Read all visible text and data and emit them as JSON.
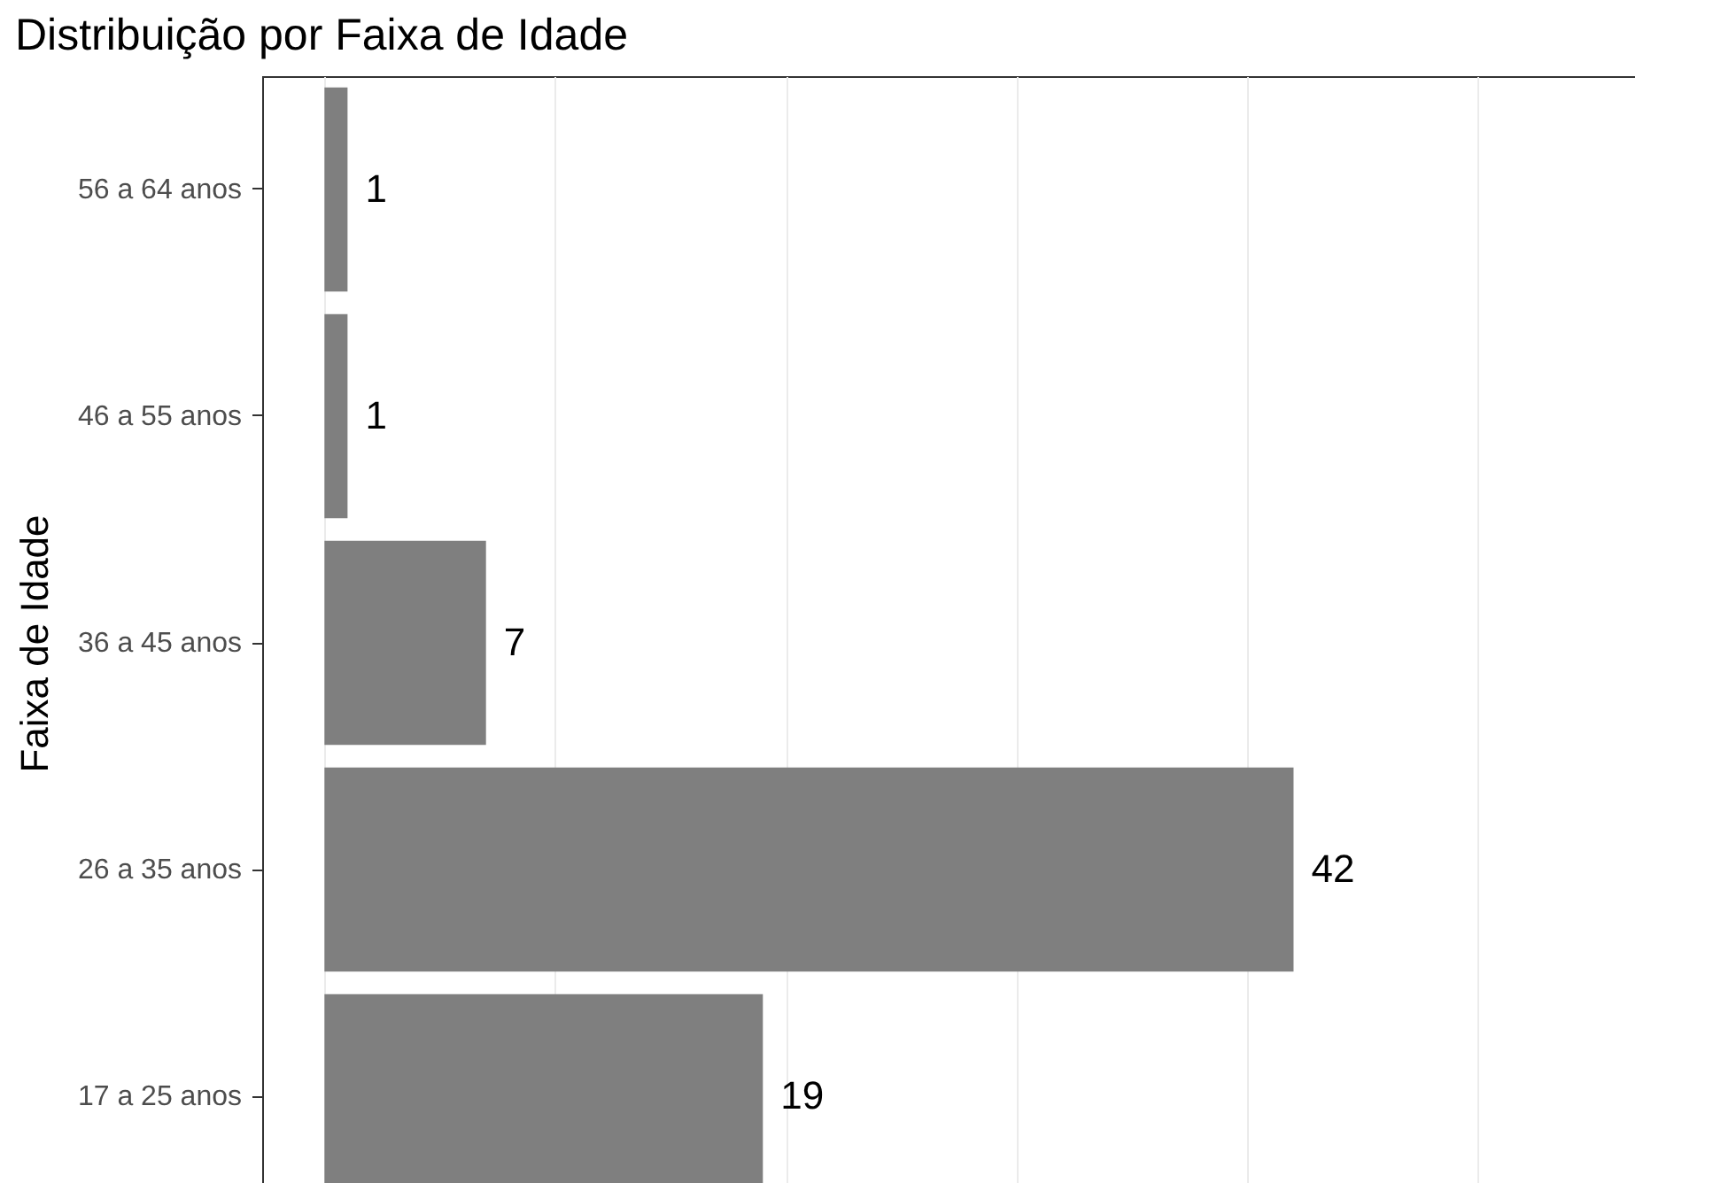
{
  "chart_data": {
    "type": "bar",
    "orientation": "horizontal",
    "title": "Distribuição por Faixa de Idade",
    "ylabel": "Faixa de Idade",
    "categories": [
      "56 a 64 anos",
      "46 a 55 anos",
      "36 a 45 anos",
      "26 a 35 anos",
      "17 a 25 anos"
    ],
    "values": [
      1,
      1,
      7,
      42,
      19
    ],
    "color": "#7f7f7f",
    "xlim": [
      -2.7,
      56.8
    ],
    "xticks": [
      0,
      10,
      20,
      30,
      40,
      50
    ],
    "tick_labels": "y",
    "grid": "x",
    "data_labels": true
  }
}
